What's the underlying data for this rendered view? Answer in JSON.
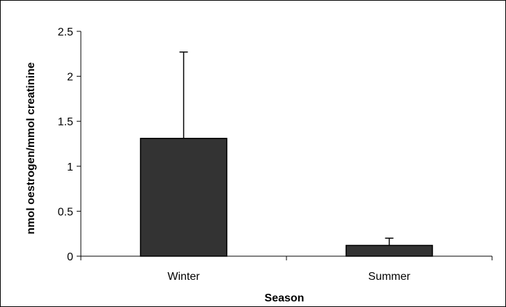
{
  "chart_data": {
    "type": "bar",
    "title": "",
    "xlabel": "Season",
    "ylabel": "nmol oestrogen/mmol creatinine",
    "categories": [
      "Winter",
      "Summer"
    ],
    "values": [
      1.31,
      0.12
    ],
    "error_upper": [
      0.96,
      0.08
    ],
    "ylim": [
      0,
      2.5
    ],
    "yticks": [
      0,
      0.5,
      1,
      1.5,
      2,
      2.5
    ],
    "ytick_labels": [
      "0",
      "0.5",
      "1",
      "1.5",
      "2",
      "2.5"
    ],
    "grid": false,
    "legend": "none",
    "bar_color": "#333333",
    "axis_color": "#000000"
  }
}
